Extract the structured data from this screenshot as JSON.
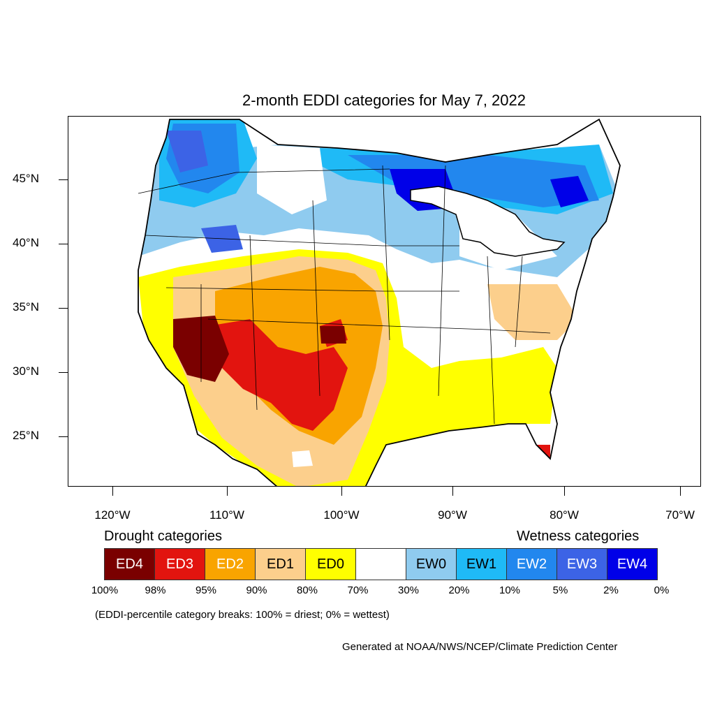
{
  "title": "2-month EDDI categories for May 7, 2022",
  "latitude_labels": [
    "45°N",
    "40°N",
    "35°N",
    "30°N",
    "25°N"
  ],
  "longitude_labels": [
    "120°W",
    "110°W",
    "100°W",
    "90°W",
    "80°W",
    "70°W"
  ],
  "legend": {
    "drought_heading": "Drought categories",
    "wetness_heading": "Wetness categories",
    "categories": [
      {
        "label": "ED4",
        "color": "#7a0000",
        "text_color": "#ffffff"
      },
      {
        "label": "ED3",
        "color": "#e2140f",
        "text_color": "#ffffff"
      },
      {
        "label": "ED2",
        "color": "#f9a400",
        "text_color": "#ffffff"
      },
      {
        "label": "ED1",
        "color": "#fccf8c",
        "text_color": "#000000"
      },
      {
        "label": "ED0",
        "color": "#ffff00",
        "text_color": "#000000"
      },
      {
        "label": "",
        "color": "#ffffff",
        "text_color": "#000000"
      },
      {
        "label": "EW0",
        "color": "#8fcbef",
        "text_color": "#000000"
      },
      {
        "label": "EW1",
        "color": "#1fbaf6",
        "text_color": "#000000"
      },
      {
        "label": "EW2",
        "color": "#2287ee",
        "text_color": "#ffffff"
      },
      {
        "label": "EW3",
        "color": "#3c63e6",
        "text_color": "#ffffff"
      },
      {
        "label": "EW4",
        "color": "#0000e8",
        "text_color": "#ffffff"
      }
    ],
    "breaks": [
      "100%",
      "98%",
      "95%",
      "90%",
      "80%",
      "70%",
      "30%",
      "20%",
      "10%",
      "5%",
      "2%",
      "0%"
    ]
  },
  "breaks_note": "(EDDI-percentile category breaks: 100% = driest; 0% = wettest)",
  "credit": "Generated at NOAA/NWS/NCEP/Climate Prediction Center"
}
